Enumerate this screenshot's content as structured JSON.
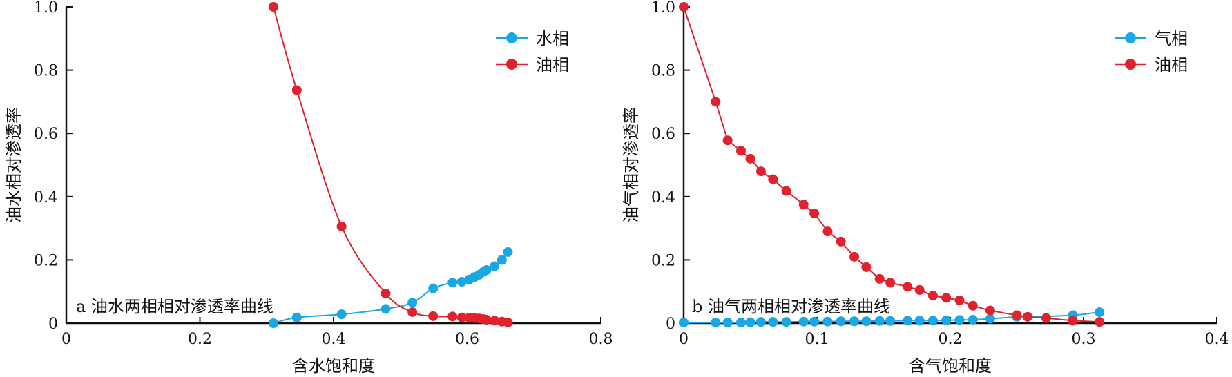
{
  "chart_data": [
    {
      "type": "line",
      "caption": "a 油水两相相对渗透率曲线",
      "xlabel": "含水饱和度",
      "ylabel": "油水相对渗透率",
      "xlim": [
        0,
        0.8
      ],
      "ylim": [
        0,
        1.0
      ],
      "x_ticks": [
        "0",
        "0.2",
        "0.4",
        "0.6",
        "0.8"
      ],
      "y_ticks": [
        "0",
        "0.2",
        "0.4",
        "0.6",
        "0.8",
        "1.0"
      ],
      "legend_position": "top-right",
      "series": [
        {
          "name": "水相",
          "color": "#1aa7e3",
          "points": [
            [
              0.31,
              0.0
            ],
            [
              0.345,
              0.018
            ],
            [
              0.412,
              0.028
            ],
            [
              0.478,
              0.045
            ],
            [
              0.518,
              0.065
            ],
            [
              0.549,
              0.11
            ],
            [
              0.578,
              0.128
            ],
            [
              0.592,
              0.131
            ],
            [
              0.603,
              0.138
            ],
            [
              0.611,
              0.146
            ],
            [
              0.618,
              0.153
            ],
            [
              0.624,
              0.162
            ],
            [
              0.629,
              0.168
            ],
            [
              0.641,
              0.18
            ],
            [
              0.652,
              0.2
            ],
            [
              0.661,
              0.225
            ]
          ]
        },
        {
          "name": "油相",
          "color": "#e0212e",
          "points": [
            [
              0.31,
              1.0
            ],
            [
              0.345,
              0.737
            ],
            [
              0.412,
              0.306
            ],
            [
              0.478,
              0.094
            ],
            [
              0.518,
              0.035
            ],
            [
              0.549,
              0.022
            ],
            [
              0.578,
              0.021
            ],
            [
              0.592,
              0.018
            ],
            [
              0.603,
              0.017
            ],
            [
              0.611,
              0.016
            ],
            [
              0.618,
              0.015
            ],
            [
              0.624,
              0.013
            ],
            [
              0.629,
              0.011
            ],
            [
              0.641,
              0.008
            ],
            [
              0.652,
              0.005
            ],
            [
              0.661,
              0.002
            ]
          ]
        }
      ]
    },
    {
      "type": "line",
      "caption": "b 油气两相相对渗透率曲线",
      "xlabel": "含气饱和度",
      "ylabel": "油气相对渗透率",
      "xlim": [
        0,
        0.4
      ],
      "ylim": [
        0,
        1.0
      ],
      "x_ticks": [
        "0",
        "0.1",
        "0.2",
        "0.3",
        "0.4"
      ],
      "y_ticks": [
        "0",
        "0.2",
        "0.4",
        "0.6",
        "0.8",
        "1.0"
      ],
      "legend_position": "top-right",
      "series": [
        {
          "name": "气相",
          "color": "#1aa7e3",
          "points": [
            [
              0.0,
              0.002
            ],
            [
              0.024,
              0.002
            ],
            [
              0.033,
              0.002
            ],
            [
              0.043,
              0.002
            ],
            [
              0.05,
              0.003
            ],
            [
              0.058,
              0.004
            ],
            [
              0.067,
              0.004
            ],
            [
              0.077,
              0.004
            ],
            [
              0.09,
              0.005
            ],
            [
              0.098,
              0.005
            ],
            [
              0.108,
              0.005
            ],
            [
              0.118,
              0.006
            ],
            [
              0.128,
              0.006
            ],
            [
              0.137,
              0.006
            ],
            [
              0.147,
              0.007
            ],
            [
              0.155,
              0.007
            ],
            [
              0.168,
              0.008
            ],
            [
              0.177,
              0.008
            ],
            [
              0.187,
              0.008
            ],
            [
              0.197,
              0.009
            ],
            [
              0.207,
              0.01
            ],
            [
              0.217,
              0.011
            ],
            [
              0.23,
              0.014
            ],
            [
              0.25,
              0.02
            ],
            [
              0.258,
              0.02
            ],
            [
              0.292,
              0.025
            ],
            [
              0.312,
              0.035
            ]
          ]
        },
        {
          "name": "油相",
          "color": "#e0212e",
          "points": [
            [
              0.0,
              1.0
            ],
            [
              0.024,
              0.7
            ],
            [
              0.033,
              0.578
            ],
            [
              0.043,
              0.545
            ],
            [
              0.05,
              0.52
            ],
            [
              0.058,
              0.48
            ],
            [
              0.067,
              0.455
            ],
            [
              0.077,
              0.418
            ],
            [
              0.09,
              0.375
            ],
            [
              0.098,
              0.347
            ],
            [
              0.108,
              0.29
            ],
            [
              0.118,
              0.258
            ],
            [
              0.128,
              0.21
            ],
            [
              0.137,
              0.177
            ],
            [
              0.147,
              0.14
            ],
            [
              0.155,
              0.128
            ],
            [
              0.168,
              0.115
            ],
            [
              0.177,
              0.105
            ],
            [
              0.187,
              0.087
            ],
            [
              0.197,
              0.08
            ],
            [
              0.207,
              0.072
            ],
            [
              0.217,
              0.055
            ],
            [
              0.23,
              0.04
            ],
            [
              0.25,
              0.025
            ],
            [
              0.258,
              0.02
            ],
            [
              0.272,
              0.016
            ],
            [
              0.292,
              0.008
            ],
            [
              0.312,
              0.004
            ]
          ]
        }
      ]
    }
  ]
}
